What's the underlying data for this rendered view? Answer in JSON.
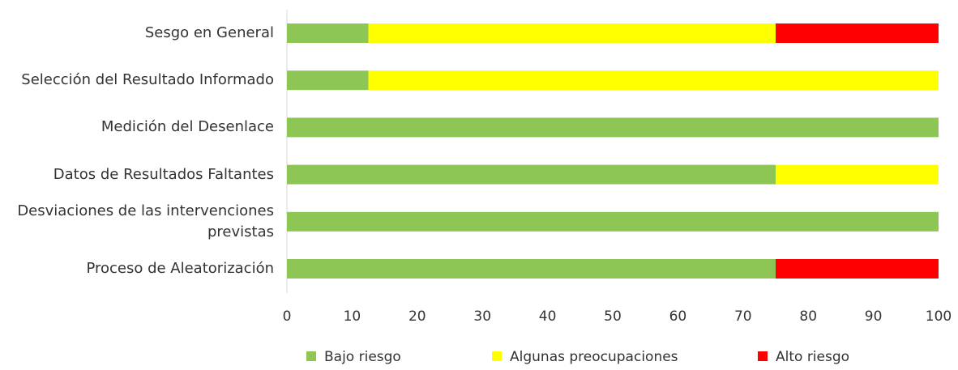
{
  "chart_data": {
    "type": "stacked-barh",
    "categories": [
      "Sesgo en General",
      "Selección del Resultado Informado",
      "Medición del Desenlace",
      "Datos de Resultados Faltantes",
      "Desviaciones de las intervenciones previstas",
      "Proceso de Aleatorización"
    ],
    "series": [
      {
        "name": "Bajo riesgo",
        "color": "#8dc655",
        "values": [
          12.5,
          12.5,
          100,
          75,
          100,
          75
        ]
      },
      {
        "name": "Algunas preocupaciones",
        "color": "#ffff00",
        "values": [
          62.5,
          87.5,
          0,
          25,
          0,
          0
        ]
      },
      {
        "name": "Alto riesgo",
        "color": "#ff0000",
        "values": [
          25,
          0,
          0,
          0,
          0,
          25
        ]
      }
    ],
    "xlim": [
      0,
      100
    ],
    "xticks": [
      0,
      10,
      20,
      30,
      40,
      50,
      60,
      70,
      80,
      90,
      100
    ],
    "legend": "bottom"
  }
}
